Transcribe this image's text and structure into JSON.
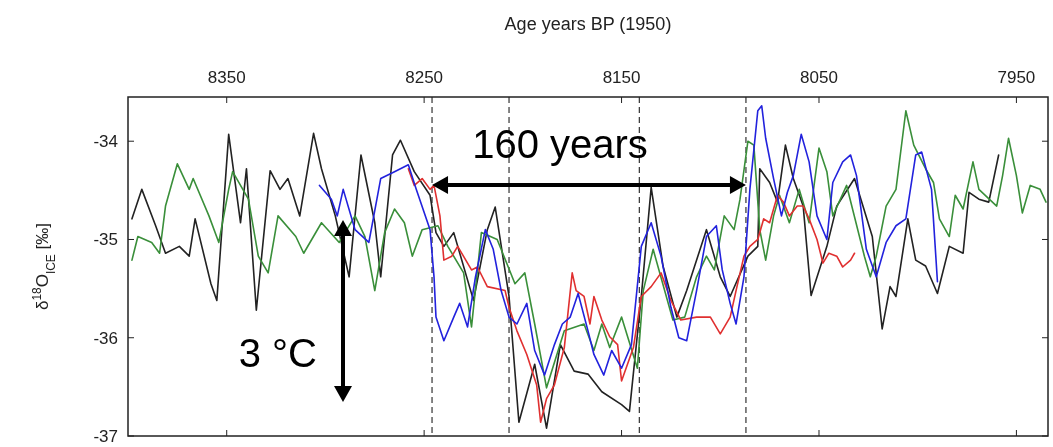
{
  "chart_data": {
    "type": "line",
    "xlabel": "Age years BP (1950)",
    "ylabel": "δ$^{18}$O$_{ICE}$ [‰]",
    "xlim": [
      8400,
      7934
    ],
    "xticks": [
      8350,
      8250,
      8150,
      8050,
      7950
    ],
    "ylim": [
      -37,
      -33.55
    ],
    "yticks": [
      -34,
      -35,
      -36,
      -37
    ],
    "ref_lines": [
      {
        "axis": "x",
        "value": 8246,
        "color": "#333333",
        "line_style": "dashed"
      },
      {
        "axis": "x",
        "value": 8207,
        "color": "#333333",
        "line_style": "dashed"
      },
      {
        "axis": "x",
        "value": 8141,
        "color": "#333333",
        "line_style": "dashed"
      },
      {
        "axis": "x",
        "value": 8087,
        "color": "#333333",
        "line_style": "dashed"
      }
    ],
    "annotations": [
      "160 years",
      "3 °C"
    ],
    "series": [
      {
        "color": "#222222",
        "x": [
          8398,
          8393,
          8386,
          8381,
          8374,
          8369,
          8366,
          8358,
          8355,
          8349,
          8343,
          8340,
          8335,
          8328,
          8323,
          8319,
          8313,
          8306,
          8302,
          8295,
          8288,
          8282,
          8275,
          8272,
          8266,
          8262,
          8255,
          8247,
          8244,
          8240,
          8235,
          8225,
          8218,
          8214,
          8207,
          8202,
          8194,
          8188,
          8181,
          8174,
          8167,
          8160,
          8150,
          8146,
          8140,
          8135,
          8129,
          8122,
          8117,
          8107,
          8100,
          8095,
          8086,
          8081,
          8080,
          8075,
          8071,
          8067,
          8063,
          8058,
          8054,
          8046,
          8041,
          8032,
          8023,
          8018,
          8014,
          8011,
          8005,
          8001,
          7996,
          7990,
          7984,
          7977,
          7974,
          7969,
          7964,
          7959
        ],
        "values": [
          -34.79,
          -34.49,
          -34.86,
          -35.14,
          -35.07,
          -35.17,
          -34.79,
          -35.45,
          -35.62,
          -33.93,
          -34.83,
          -34.28,
          -35.72,
          -34.3,
          -34.49,
          -34.38,
          -34.76,
          -33.92,
          -34.28,
          -34.76,
          -35.38,
          -34.14,
          -34.83,
          -35.38,
          -34.14,
          -33.99,
          -34.31,
          -34.55,
          -34.93,
          -35.07,
          -34.93,
          -35.62,
          -34.9,
          -34.67,
          -35.58,
          -36.86,
          -36.27,
          -36.92,
          -36.07,
          -36.34,
          -36.37,
          -36.55,
          -36.68,
          -36.75,
          -35.58,
          -34.47,
          -35.27,
          -35.79,
          -35.52,
          -34.9,
          -35.38,
          -35.58,
          -35.17,
          -35.07,
          -34.28,
          -34.42,
          -34.62,
          -34.04,
          -34.38,
          -34.66,
          -35.57,
          -35.07,
          -34.66,
          -34.38,
          -34.97,
          -35.91,
          -35.48,
          -35.58,
          -34.79,
          -35.21,
          -35.27,
          -35.55,
          -35.07,
          -35.14,
          -34.52,
          -34.59,
          -34.62,
          -34.14
        ]
      },
      {
        "color": "#3a8f3a",
        "x": [
          8398,
          8395,
          8388,
          8384,
          8381,
          8375,
          8369,
          8367,
          8359,
          8354,
          8349,
          8347,
          8339,
          8334,
          8329,
          8324,
          8315,
          8311,
          8302,
          8293,
          8285,
          8280,
          8275,
          8270,
          8265,
          8260,
          8256,
          8251,
          8243,
          8238,
          8230,
          8226,
          8221,
          8213,
          8204,
          8199,
          8194,
          8188,
          8179,
          8169,
          8164,
          8160,
          8156,
          8150,
          8142,
          8139,
          8134,
          8124,
          8118,
          8112,
          8107,
          8103,
          8098,
          8093,
          8090,
          8086,
          8083,
          8080,
          8077,
          8073,
          8070,
          8065,
          8060,
          8055,
          8050,
          8046,
          8043,
          8036,
          8027,
          8024,
          8021,
          8016,
          8011,
          8006,
          8002,
          7996,
          7992,
          7989,
          7984,
          7981,
          7977,
          7972,
          7969,
          7960,
          7957,
          7954,
          7950,
          7947,
          7943,
          7938,
          7935
        ],
        "values": [
          -35.21,
          -34.97,
          -35.03,
          -35.14,
          -34.66,
          -34.23,
          -34.49,
          -34.38,
          -34.76,
          -35.03,
          -34.49,
          -34.31,
          -34.59,
          -35.17,
          -35.34,
          -34.76,
          -34.97,
          -35.14,
          -34.83,
          -35.03,
          -34.76,
          -34.97,
          -35.52,
          -34.93,
          -34.69,
          -34.83,
          -35.17,
          -34.9,
          -34.86,
          -35.07,
          -35.34,
          -35.89,
          -34.93,
          -35.0,
          -35.45,
          -35.34,
          -35.86,
          -36.51,
          -35.93,
          -35.86,
          -36.13,
          -35.86,
          -36.1,
          -35.79,
          -36.31,
          -35.52,
          -35.1,
          -35.82,
          -35.79,
          -35.38,
          -35.17,
          -35.31,
          -34.76,
          -34.9,
          -34.59,
          -34.0,
          -34.04,
          -34.9,
          -35.21,
          -34.76,
          -34.55,
          -34.83,
          -34.49,
          -34.83,
          -34.07,
          -34.31,
          -34.76,
          -34.45,
          -35.17,
          -35.38,
          -35.17,
          -34.66,
          -34.49,
          -33.69,
          -34.04,
          -34.28,
          -34.42,
          -34.79,
          -34.97,
          -34.55,
          -34.69,
          -34.21,
          -34.49,
          -34.66,
          -34.35,
          -33.97,
          -34.35,
          -34.73,
          -34.45,
          -34.49,
          -34.62
        ]
      },
      {
        "color": "#e03030",
        "x": [
          8258,
          8255,
          8251,
          8247,
          8245,
          8242,
          8240,
          8236,
          8233,
          8226,
          8223,
          8218,
          8209,
          8207,
          8203,
          8198,
          8193,
          8191,
          8188,
          8184,
          8179,
          8175,
          8173,
          8169,
          8166,
          8164,
          8160,
          8156,
          8152,
          8150,
          8147,
          8144,
          8140,
          8135,
          8130,
          8125,
          8120,
          8112,
          8105,
          8100,
          8095,
          8092,
          8088,
          8085,
          8081,
          8078,
          8075,
          8071,
          8068,
          8065,
          8061,
          8058,
          8055,
          8051,
          8048,
          8045,
          8041,
          8038,
          8034,
          8032
        ],
        "values": [
          -34.28,
          -34.45,
          -34.38,
          -34.49,
          -34.45,
          -34.76,
          -35.21,
          -35.17,
          -35.07,
          -35.31,
          -35.28,
          -35.48,
          -35.52,
          -35.69,
          -35.93,
          -36.17,
          -36.48,
          -36.86,
          -36.62,
          -36.48,
          -36.1,
          -35.34,
          -35.52,
          -35.58,
          -35.86,
          -35.58,
          -35.82,
          -35.99,
          -36.07,
          -36.44,
          -36.27,
          -36.1,
          -35.58,
          -35.48,
          -35.34,
          -35.62,
          -35.82,
          -35.79,
          -35.79,
          -35.96,
          -35.79,
          -35.52,
          -35.17,
          -35.07,
          -35.0,
          -34.79,
          -34.83,
          -34.55,
          -34.62,
          -34.76,
          -34.66,
          -34.66,
          -34.79,
          -35.0,
          -35.24,
          -35.14,
          -35.17,
          -35.28,
          -35.21,
          -35.14
        ]
      },
      {
        "color": "#2222dd",
        "x": [
          8303,
          8297,
          8294,
          8291,
          8285,
          8278,
          8272,
          8265,
          8258,
          8254,
          8247,
          8245,
          8244,
          8240,
          8235,
          8232,
          8228,
          8224,
          8219,
          8215,
          8211,
          8207,
          8203,
          8198,
          8194,
          8189,
          8184,
          8180,
          8176,
          8172,
          8167,
          8164,
          8159,
          8155,
          8150,
          8145,
          8140,
          8135,
          8130,
          8125,
          8121,
          8117,
          8112,
          8107,
          8102,
          8099,
          8095,
          8092,
          8088,
          8085,
          8081,
          8079,
          8077,
          8073,
          8069,
          8066,
          8063,
          8059,
          8055,
          8051,
          8046,
          8043,
          8038,
          8034,
          8031,
          8026,
          8021,
          8016,
          8011,
          8006,
          8001,
          7998,
          7993,
          7990
        ],
        "values": [
          -34.45,
          -34.59,
          -34.76,
          -34.49,
          -34.9,
          -35.03,
          -34.38,
          -34.31,
          -34.24,
          -34.49,
          -34.9,
          -35.38,
          -35.79,
          -36.03,
          -35.79,
          -35.65,
          -35.89,
          -35.38,
          -34.9,
          -35.1,
          -35.52,
          -35.79,
          -35.86,
          -35.65,
          -36.13,
          -36.38,
          -36.07,
          -35.86,
          -35.79,
          -35.55,
          -35.93,
          -36.17,
          -36.38,
          -36.13,
          -36.31,
          -36.07,
          -35.07,
          -34.83,
          -35.17,
          -35.69,
          -36.0,
          -36.03,
          -35.52,
          -34.97,
          -34.86,
          -35.31,
          -35.65,
          -35.86,
          -35.38,
          -34.49,
          -33.69,
          -33.64,
          -33.97,
          -34.38,
          -34.76,
          -34.52,
          -34.35,
          -33.93,
          -34.21,
          -34.76,
          -35.0,
          -34.42,
          -34.21,
          -34.14,
          -34.35,
          -35.1,
          -35.38,
          -35.03,
          -34.86,
          -34.79,
          -34.14,
          -34.11,
          -34.49,
          -35.43
        ]
      }
    ]
  }
}
